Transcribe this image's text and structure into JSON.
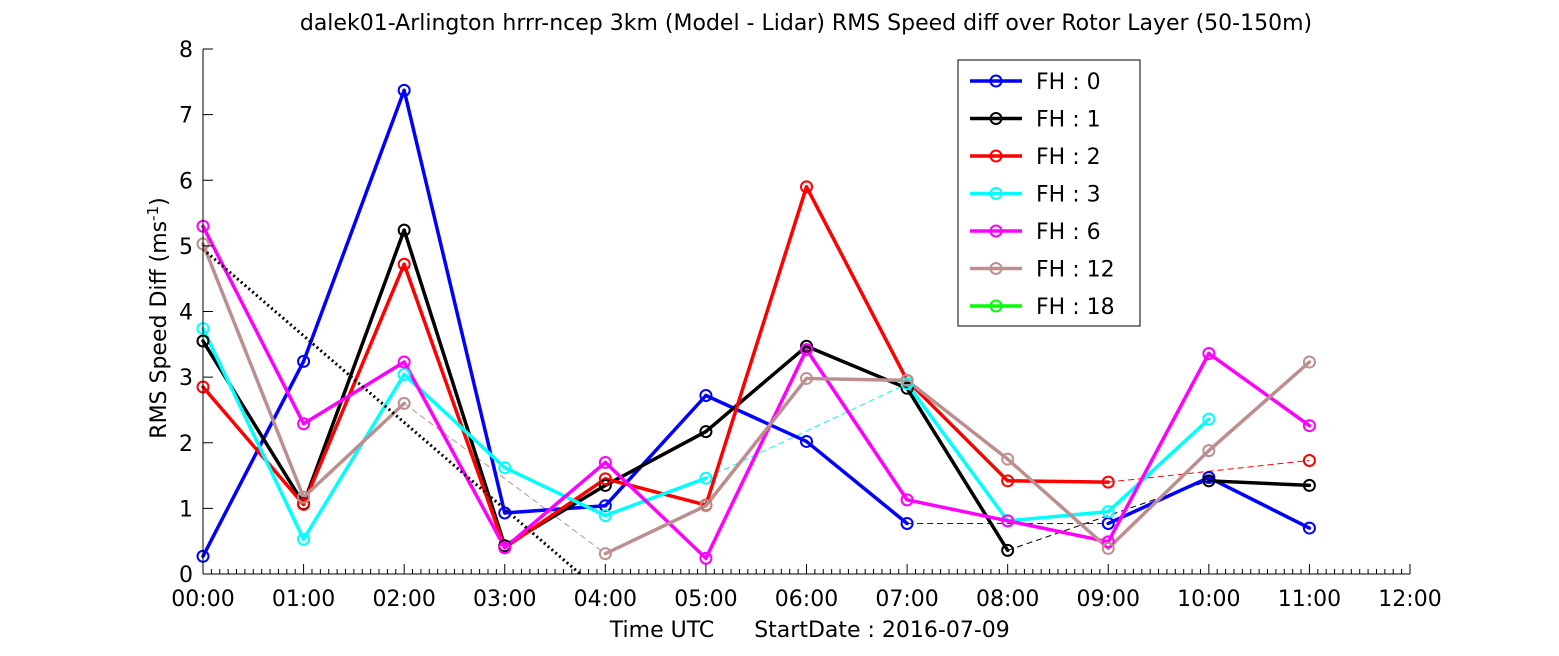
{
  "chart_data": {
    "type": "line",
    "title": "dalek01-Arlington hrrr-ncep 3km (Model - Lidar) RMS Speed diff over Rotor Layer (50-150m)",
    "xlabel": "Time UTC",
    "start_date_label": "StartDate : 2016-07-09",
    "ylabel": "RMS Speed Diff (ms",
    "ylabel_sup": "-1",
    "ylabel_close": ")",
    "xlim": [
      0,
      12
    ],
    "ylim": [
      0,
      8
    ],
    "x_tick_labels": [
      "00:00",
      "01:00",
      "02:00",
      "03:00",
      "04:00",
      "05:00",
      "06:00",
      "07:00",
      "08:00",
      "09:00",
      "10:00",
      "11:00",
      "12:00"
    ],
    "y_tick_labels": [
      "0",
      "1",
      "2",
      "3",
      "4",
      "5",
      "6",
      "7",
      "8"
    ],
    "legend_position": "top-right",
    "series": [
      {
        "name": "FH : 0",
        "color": "#0000ff",
        "points": [
          [
            0,
            0.27
          ],
          [
            1,
            3.24
          ],
          [
            2,
            7.37
          ],
          [
            3,
            0.93
          ],
          [
            4,
            1.04
          ],
          [
            5,
            2.72
          ],
          [
            6,
            2.02
          ],
          [
            7,
            0.77
          ],
          [
            9,
            0.77
          ],
          [
            10,
            1.47
          ],
          [
            11,
            0.7
          ]
        ]
      },
      {
        "name": "FH : 1",
        "color": "#000000",
        "points": [
          [
            0,
            3.55
          ],
          [
            1,
            1.07
          ],
          [
            2,
            5.24
          ],
          [
            3,
            0.43
          ],
          [
            4,
            1.35
          ],
          [
            5,
            2.17
          ],
          [
            6,
            3.47
          ],
          [
            7,
            2.83
          ],
          [
            8,
            0.36
          ],
          [
            10,
            1.42
          ],
          [
            11,
            1.35
          ]
        ]
      },
      {
        "name": "FH : 2",
        "color": "#ff0000",
        "points": [
          [
            0,
            2.85
          ],
          [
            1,
            1.06
          ],
          [
            2,
            4.72
          ],
          [
            3,
            0.4
          ],
          [
            4,
            1.45
          ],
          [
            5,
            1.05
          ],
          [
            6,
            5.9
          ],
          [
            7,
            2.95
          ],
          [
            8,
            1.42
          ],
          [
            9,
            1.4
          ],
          [
            11,
            1.73
          ]
        ]
      },
      {
        "name": "FH : 3",
        "color": "#00ffff",
        "points": [
          [
            0,
            3.74
          ],
          [
            1,
            0.53
          ],
          [
            2,
            3.04
          ],
          [
            3,
            1.62
          ],
          [
            4,
            0.89
          ],
          [
            5,
            1.46
          ],
          [
            7,
            2.9
          ],
          [
            8,
            0.81
          ],
          [
            9,
            0.95
          ],
          [
            10,
            2.36
          ]
        ]
      },
      {
        "name": "FH : 6",
        "color": "#ff00ff",
        "points": [
          [
            0,
            5.3
          ],
          [
            1,
            2.29
          ],
          [
            2,
            3.23
          ],
          [
            3,
            0.4
          ],
          [
            4,
            1.7
          ],
          [
            5,
            0.24
          ],
          [
            6,
            3.42
          ],
          [
            7,
            1.13
          ],
          [
            8,
            0.81
          ],
          [
            9,
            0.49
          ],
          [
            10,
            3.36
          ],
          [
            11,
            2.26
          ]
        ]
      },
      {
        "name": "FH : 12",
        "color": "#bc8f8f",
        "points": [
          [
            0,
            5.03
          ],
          [
            1,
            1.17
          ],
          [
            2,
            2.6
          ],
          [
            4,
            0.31
          ],
          [
            5,
            1.04
          ],
          [
            6,
            2.98
          ],
          [
            7,
            2.95
          ],
          [
            8,
            1.75
          ],
          [
            9,
            0.39
          ],
          [
            10,
            1.88
          ],
          [
            11,
            3.23
          ]
        ]
      },
      {
        "name": "FH : 18",
        "color": "#00ff00",
        "points": []
      }
    ],
    "dotted_line": {
      "color": "#000000",
      "points": [
        [
          0,
          4.95
        ],
        [
          3.75,
          0
        ]
      ]
    }
  }
}
